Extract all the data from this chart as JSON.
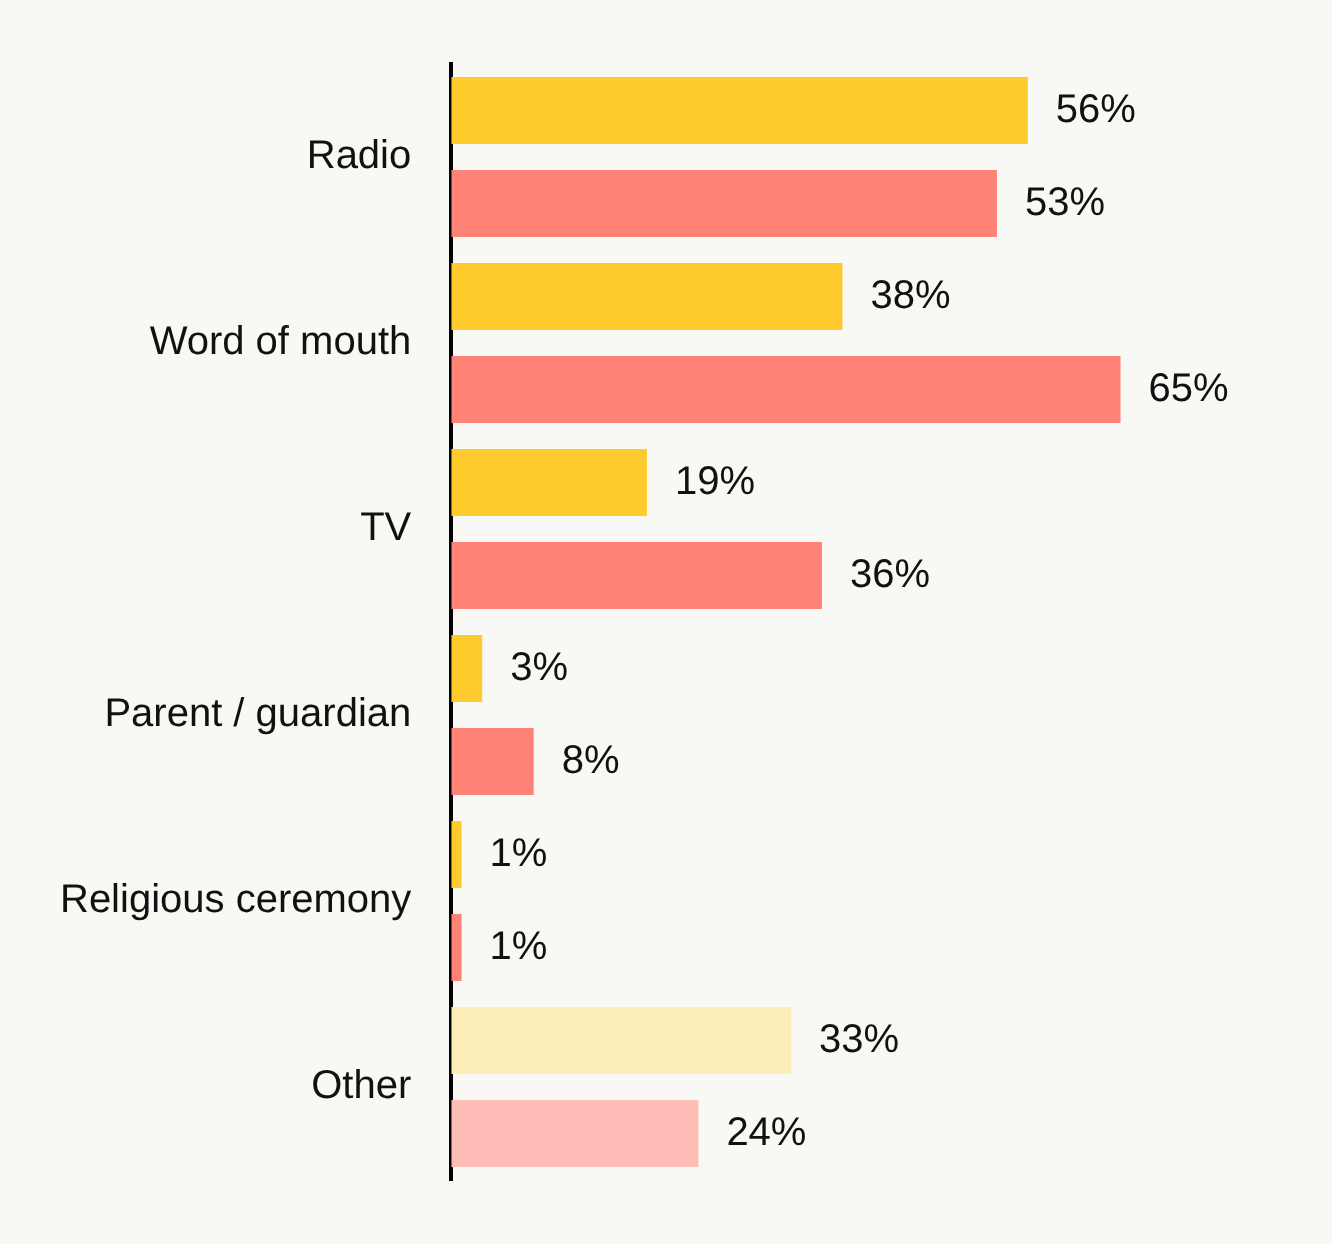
{
  "chart_data": {
    "type": "bar",
    "orientation": "horizontal",
    "categories": [
      "Radio",
      "Word of mouth",
      "TV",
      "Parent / guardian",
      "Religious ceremony",
      "Other"
    ],
    "series": [
      {
        "colors": [
          "#ffca2c",
          "#ffca2c",
          "#ffca2c",
          "#ffca2c",
          "#ffca2c",
          "#fdeeb8"
        ],
        "values": [
          56,
          38,
          19,
          3,
          1,
          33
        ],
        "value_labels": [
          "56%",
          "38%",
          "19%",
          "3%",
          "1%",
          "33%"
        ]
      },
      {
        "colors": [
          "#ff8277",
          "#ff8277",
          "#ff8277",
          "#ff8277",
          "#ff8277",
          "#fdbcb5"
        ],
        "values": [
          53,
          65,
          36,
          8,
          1,
          24
        ],
        "value_labels": [
          "53%",
          "65%",
          "36%",
          "8%",
          "1%",
          "24%"
        ]
      }
    ],
    "legend": false,
    "tick_labels": "y"
  }
}
